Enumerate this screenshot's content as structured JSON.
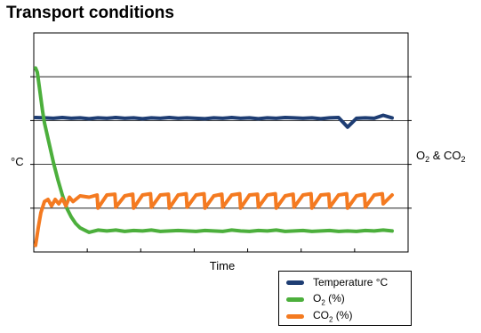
{
  "chart_data": {
    "type": "line",
    "title": "Transport conditions",
    "xlabel": "Time",
    "ylabel_left": "°C",
    "ylabel_right_parts": [
      "O",
      "2",
      " & CO",
      "2"
    ],
    "grid": "horizontal",
    "x_ticks": 7,
    "ylim": [
      0,
      5
    ],
    "series": [
      {
        "name_parts": [
          "Temperature °C"
        ],
        "color": "#1e3d73",
        "x": [
          0,
          1,
          2,
          3,
          4,
          5,
          6,
          7,
          8,
          9,
          10,
          11,
          12,
          13,
          14,
          15,
          16,
          17,
          18,
          19,
          20,
          21,
          22,
          23,
          24,
          25,
          26,
          27,
          28,
          29,
          30,
          31,
          32,
          33,
          34,
          35,
          36,
          37,
          38,
          39,
          40
        ],
        "values": [
          3.07,
          3.06,
          3.05,
          3.07,
          3.05,
          3.06,
          3.04,
          3.06,
          3.05,
          3.07,
          3.05,
          3.06,
          3.04,
          3.06,
          3.05,
          3.07,
          3.05,
          3.06,
          3.05,
          3.04,
          3.06,
          3.05,
          3.07,
          3.05,
          3.06,
          3.04,
          3.06,
          3.05,
          3.07,
          3.06,
          3.05,
          3.06,
          3.04,
          3.06,
          3.07,
          2.85,
          3.05,
          3.06,
          3.05,
          3.12,
          3.06
        ]
      },
      {
        "name_parts": [
          "O",
          "2",
          " (%)"
        ],
        "color": "#4caf3c",
        "x": [
          0,
          0.2,
          0.4,
          0.6,
          0.8,
          1,
          1.5,
          2,
          2.5,
          3,
          3.5,
          4,
          4.5,
          5,
          5.5,
          6,
          7,
          8,
          9,
          10,
          11,
          12,
          13,
          14,
          15,
          16,
          17,
          18,
          19,
          20,
          21,
          22,
          23,
          24,
          25,
          26,
          27,
          28,
          29,
          30,
          31,
          32,
          33,
          34,
          35,
          36,
          37,
          38,
          39,
          40
        ],
        "values": [
          4.2,
          4.1,
          3.8,
          3.5,
          3.2,
          2.95,
          2.5,
          2.05,
          1.65,
          1.3,
          1.0,
          0.8,
          0.65,
          0.55,
          0.5,
          0.45,
          0.5,
          0.48,
          0.5,
          0.47,
          0.49,
          0.48,
          0.5,
          0.47,
          0.48,
          0.49,
          0.48,
          0.47,
          0.49,
          0.48,
          0.47,
          0.5,
          0.48,
          0.47,
          0.49,
          0.48,
          0.5,
          0.47,
          0.48,
          0.49,
          0.47,
          0.48,
          0.49,
          0.47,
          0.48,
          0.47,
          0.49,
          0.48,
          0.5,
          0.48
        ]
      },
      {
        "name_parts": [
          "CO",
          "2",
          " (%)"
        ],
        "color": "#f47a20",
        "x": [
          0,
          0.3,
          0.6,
          1,
          1.4,
          1.8,
          2.2,
          2.6,
          3,
          3.4,
          3.8,
          4.2,
          5,
          6,
          6.9,
          7,
          8,
          8.9,
          9,
          10,
          10.9,
          11,
          12,
          12.9,
          13,
          14,
          14.9,
          15,
          16,
          16.9,
          17,
          18,
          18.9,
          19,
          20,
          20.9,
          21,
          22,
          22.9,
          23,
          24,
          24.9,
          25,
          26,
          26.9,
          27,
          28,
          28.9,
          29,
          30,
          30.9,
          31,
          32,
          32.9,
          33,
          34,
          34.9,
          35,
          36,
          36.9,
          37,
          38,
          38.9,
          39,
          40
        ],
        "values": [
          0.15,
          0.55,
          0.9,
          1.15,
          1.2,
          1.05,
          1.2,
          1.1,
          1.22,
          1.05,
          1.25,
          1.15,
          1.28,
          1.25,
          1.3,
          1.0,
          1.3,
          1.32,
          1.02,
          1.28,
          1.32,
          1.0,
          1.3,
          1.33,
          1.02,
          1.3,
          1.32,
          1.0,
          1.3,
          1.33,
          1.02,
          1.3,
          1.33,
          1.0,
          1.28,
          1.32,
          1.02,
          1.3,
          1.33,
          1.0,
          1.3,
          1.32,
          1.02,
          1.3,
          1.33,
          1.0,
          1.28,
          1.32,
          1.02,
          1.3,
          1.33,
          1.0,
          1.3,
          1.32,
          1.02,
          1.3,
          1.33,
          1.0,
          1.28,
          1.32,
          1.02,
          1.3,
          1.33,
          1.1,
          1.3
        ]
      }
    ],
    "legend_placement": "bottom-right"
  }
}
